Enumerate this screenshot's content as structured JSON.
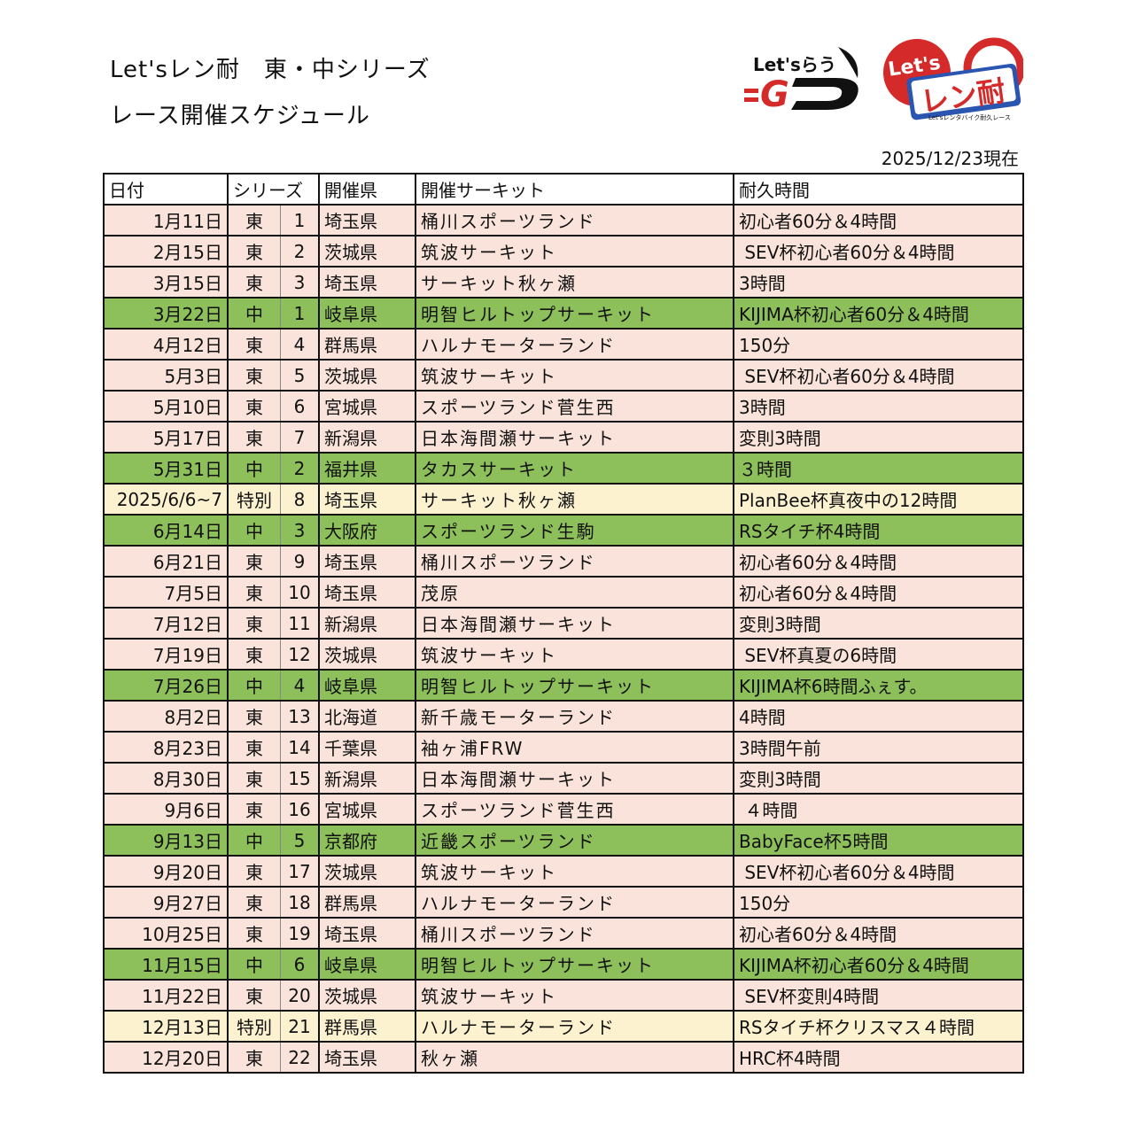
{
  "header": {
    "title_line1": "Let'sレン耐　東・中シリーズ",
    "title_line2": "レース開催スケジュール",
    "as_of": "2025/12/23現在",
    "logos": [
      {
        "name": "Let'sらうGO",
        "text": "Let'sらう GO"
      },
      {
        "name": "Let'sレン耐",
        "text": "Let's レン耐",
        "subtitle": "Let'sレンタバイク耐久レース"
      }
    ]
  },
  "colors": {
    "east_row": "#f9e3da",
    "central_row": "#8dbf5b",
    "special_row": "#fdf2d0"
  },
  "table": {
    "columns": [
      "日付",
      "シリーズ",
      "開催県",
      "開催サーキット",
      "耐久時間"
    ],
    "rows": [
      {
        "type": "e",
        "date": "1月11日",
        "series": "東",
        "no": "1",
        "pref": "埼玉県",
        "circuit": "桶川スポーツランド",
        "duration": "初心者60分＆4時間"
      },
      {
        "type": "e",
        "date": "2月15日",
        "series": "東",
        "no": "2",
        "pref": "茨城県",
        "circuit": "筑波サーキット",
        "duration": " SEV杯初心者60分＆4時間"
      },
      {
        "type": "e",
        "date": "3月15日",
        "series": "東",
        "no": "3",
        "pref": "埼玉県",
        "circuit": "サーキット秋ヶ瀬",
        "duration": "3時間"
      },
      {
        "type": "c",
        "date": "3月22日",
        "series": "中",
        "no": "1",
        "pref": "岐阜県",
        "circuit": "明智ヒルトップサーキット",
        "duration": "KIJIMA杯初心者60分＆4時間"
      },
      {
        "type": "e",
        "date": "4月12日",
        "series": "東",
        "no": "4",
        "pref": "群馬県",
        "circuit": "ハルナモーターランド",
        "duration": "150分"
      },
      {
        "type": "e",
        "date": "5月3日",
        "series": "東",
        "no": "5",
        "pref": "茨城県",
        "circuit": "筑波サーキット",
        "duration": " SEV杯初心者60分＆4時間"
      },
      {
        "type": "e",
        "date": "5月10日",
        "series": "東",
        "no": "6",
        "pref": "宮城県",
        "circuit": "スポーツランド菅生西",
        "duration": "3時間"
      },
      {
        "type": "e",
        "date": "5月17日",
        "series": "東",
        "no": "7",
        "pref": "新潟県",
        "circuit": "日本海間瀬サーキット",
        "duration": "変則3時間"
      },
      {
        "type": "c",
        "date": "5月31日",
        "series": "中",
        "no": "2",
        "pref": "福井県",
        "circuit": "タカスサーキット",
        "duration": "３時間"
      },
      {
        "type": "s",
        "date": "2025/6/6~7",
        "series": "特別",
        "no": "8",
        "pref": "埼玉県",
        "circuit": "サーキット秋ヶ瀬",
        "duration": "PlanBee杯真夜中の12時間"
      },
      {
        "type": "c",
        "date": "6月14日",
        "series": "中",
        "no": "3",
        "pref": "大阪府",
        "circuit": "スポーツランド生駒",
        "duration": "RSタイチ杯4時間"
      },
      {
        "type": "e",
        "date": "6月21日",
        "series": "東",
        "no": "9",
        "pref": "埼玉県",
        "circuit": "桶川スポーツランド",
        "duration": "初心者60分＆4時間"
      },
      {
        "type": "e",
        "date": "7月5日",
        "series": "東",
        "no": "10",
        "pref": "埼玉県",
        "circuit": "茂原",
        "duration": "初心者60分＆4時間"
      },
      {
        "type": "e",
        "date": "7月12日",
        "series": "東",
        "no": "11",
        "pref": "新潟県",
        "circuit": "日本海間瀬サーキット",
        "duration": "変則3時間"
      },
      {
        "type": "e",
        "date": "7月19日",
        "series": "東",
        "no": "12",
        "pref": "茨城県",
        "circuit": "筑波サーキット",
        "duration": " SEV杯真夏の6時間"
      },
      {
        "type": "c",
        "date": "7月26日",
        "series": "中",
        "no": "4",
        "pref": "岐阜県",
        "circuit": "明智ヒルトップサーキット",
        "duration": "KIJIMA杯6時間ふぇす。"
      },
      {
        "type": "e",
        "date": "8月2日",
        "series": "東",
        "no": "13",
        "pref": "北海道",
        "circuit": "新千歳モーターランド",
        "duration": "4時間"
      },
      {
        "type": "e",
        "date": "8月23日",
        "series": "東",
        "no": "14",
        "pref": "千葉県",
        "circuit": "袖ヶ浦FRW",
        "duration": "3時間午前"
      },
      {
        "type": "e",
        "date": "8月30日",
        "series": "東",
        "no": "15",
        "pref": "新潟県",
        "circuit": "日本海間瀬サーキット",
        "duration": "変則3時間"
      },
      {
        "type": "e",
        "date": "9月6日",
        "series": "東",
        "no": "16",
        "pref": "宮城県",
        "circuit": "スポーツランド菅生西",
        "duration": " ４時間"
      },
      {
        "type": "c",
        "date": "9月13日",
        "series": "中",
        "no": "5",
        "pref": "京都府",
        "circuit": "近畿スポーツランド",
        "duration": "BabyFace杯5時間"
      },
      {
        "type": "e",
        "date": "9月20日",
        "series": "東",
        "no": "17",
        "pref": "茨城県",
        "circuit": "筑波サーキット",
        "duration": " SEV杯初心者60分＆4時間"
      },
      {
        "type": "e",
        "date": "9月27日",
        "series": "東",
        "no": "18",
        "pref": "群馬県",
        "circuit": "ハルナモーターランド",
        "duration": "150分"
      },
      {
        "type": "e",
        "date": "10月25日",
        "series": "東",
        "no": "19",
        "pref": "埼玉県",
        "circuit": "桶川スポーツランド",
        "duration": "初心者60分＆4時間"
      },
      {
        "type": "c",
        "date": "11月15日",
        "series": "中",
        "no": "6",
        "pref": "岐阜県",
        "circuit": "明智ヒルトップサーキット",
        "duration": "KIJIMA杯初心者60分＆4時間"
      },
      {
        "type": "e",
        "date": "11月22日",
        "series": "東",
        "no": "20",
        "pref": "茨城県",
        "circuit": "筑波サーキット",
        "duration": " SEV杯変則4時間"
      },
      {
        "type": "s",
        "date": "12月13日",
        "series": "特別",
        "no": "21",
        "pref": "群馬県",
        "circuit": "ハルナモーターランド",
        "duration": "RSタイチ杯クリスマス４時間"
      },
      {
        "type": "e",
        "date": "12月20日",
        "series": "東",
        "no": "22",
        "pref": "埼玉県",
        "circuit": "秋ヶ瀬",
        "duration": "HRC杯4時間"
      }
    ]
  }
}
